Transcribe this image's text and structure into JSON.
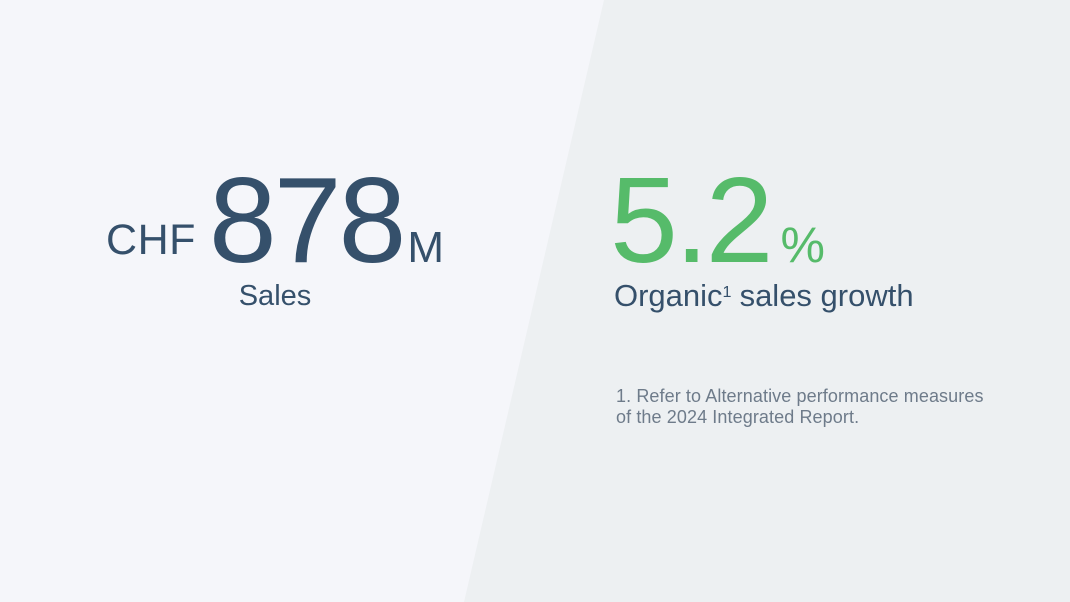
{
  "slide": {
    "left_panel_color": "#f5f6fa",
    "right_panel_color": "#edf0f2",
    "accent_blue": "#35506b",
    "accent_green": "#56bb6a",
    "footnote_color": "#6e7b8a"
  },
  "sales_stat": {
    "currency": "CHF",
    "value": "878",
    "unit": "M",
    "label": "Sales"
  },
  "growth_stat": {
    "value": "5.2",
    "unit": "%",
    "label_text": "Organic",
    "label_footnote_marker": "1",
    "label_rest": "sales growth",
    "footnote_lines": [
      "1. Refer to Alternative performance measures",
      "of the 2024 Integrated Report."
    ]
  }
}
